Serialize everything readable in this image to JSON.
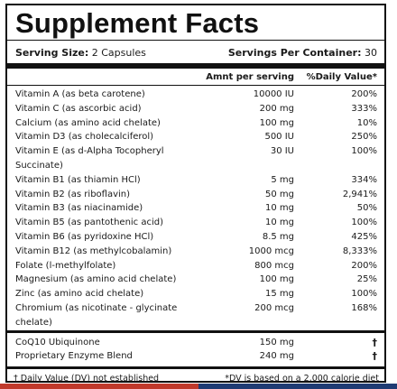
{
  "title": "Supplement Facts",
  "serving": {
    "size_label": "Serving Size:",
    "size_value": "2 Capsules",
    "servings_label": "Servings Per Container:",
    "servings_value": "30"
  },
  "columns": {
    "amount": "Amnt per serving",
    "dv": "%Daily Value*"
  },
  "nutrients": [
    {
      "name": "Vitamin A (as beta carotene)",
      "amount": "10000 IU",
      "dv": "200%"
    },
    {
      "name": "Vitamin C (as ascorbic acid)",
      "amount": "200 mg",
      "dv": "333%"
    },
    {
      "name": "Calcium (as amino acid chelate)",
      "amount": "100 mg",
      "dv": "10%"
    },
    {
      "name": "Vitamin D3 (as cholecalciferol)",
      "amount": "500 IU",
      "dv": "250%"
    },
    {
      "name": "Vitamin E (as d-Alpha Tocopheryl Succinate)",
      "amount": "30 IU",
      "dv": "100%"
    },
    {
      "name": "Vitamin B1 (as thiamin HCl)",
      "amount": "5 mg",
      "dv": "334%"
    },
    {
      "name": "Vitamin B2 (as riboflavin)",
      "amount": "50 mg",
      "dv": "2,941%"
    },
    {
      "name": "Vitamin B3 (as niacinamide)",
      "amount": "10 mg",
      "dv": "50%"
    },
    {
      "name": "Vitamin B5 (as pantothenic acid)",
      "amount": "10 mg",
      "dv": "100%"
    },
    {
      "name": "Vitamin B6 (as pyridoxine HCl)",
      "amount": "8.5 mg",
      "dv": "425%"
    },
    {
      "name": "Vitamin B12 (as methylcobalamin)",
      "amount": "1000 mcg",
      "dv": "8,333%"
    },
    {
      "name": "Folate (l-methylfolate)",
      "amount": "800 mcg",
      "dv": "200%"
    },
    {
      "name": "Magnesium (as amino acid chelate)",
      "amount": "100 mg",
      "dv": "25%"
    },
    {
      "name": "Zinc (as amino acid chelate)",
      "amount": "15 mg",
      "dv": "100%"
    },
    {
      "name": "Chromium (as nicotinate - glycinate chelate)",
      "amount": "200 mcg",
      "dv": "168%"
    }
  ],
  "other": [
    {
      "name": "CoQ10 Ubiquinone",
      "amount": "150 mg",
      "dv": "†"
    },
    {
      "name": "Proprietary Enzyme Blend",
      "amount": "240 mg",
      "dv": "†"
    }
  ],
  "footer": {
    "left": "† Daily Value (DV) not established",
    "right": "*DV is based on a 2,000 calorie diet"
  },
  "colors": {
    "border": "#111111",
    "text": "#1a1a1a",
    "accent_left": "#c0392b",
    "accent_right": "#1f3b73"
  }
}
